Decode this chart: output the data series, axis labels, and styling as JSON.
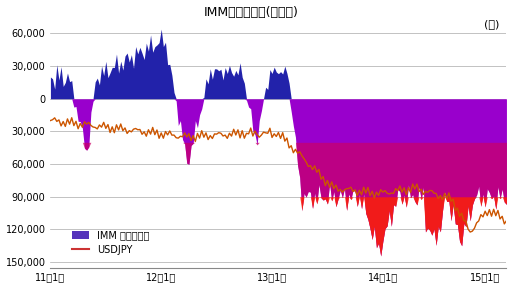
{
  "title": "IMMポジション(ドル円)",
  "title_right": "(円)",
  "x_tick_labels": [
    "11年1月",
    "12年1月",
    "13年1月",
    "14年1月",
    "15年1月"
  ],
  "y_ticks": [
    60000,
    30000,
    0,
    -30000,
    -60000,
    -90000,
    -120000,
    -150000
  ],
  "y_tick_labels": [
    "60,000",
    "30,000",
    "0",
    "30,000",
    "60,000",
    "90,000",
    "120,000",
    "150,000"
  ],
  "ylim_top": 70000,
  "ylim_bottom": -155000,
  "background_color": "#ffffff",
  "grid_color": "#aaaaaa",
  "fill_pos_color": "#2222aa",
  "fill_neg_purple": "#9900cc",
  "fill_neg_magenta": "#cc0066",
  "fill_neg_red": "#ff2200",
  "line_color": "#cc5500",
  "legend_fill_color": "#5533bb",
  "legend_line_color": "#cc3333",
  "legend_items": [
    "IMM ポジション",
    "USDJPY"
  ],
  "n_points": 215,
  "x_tick_positions": [
    0,
    52,
    104,
    156,
    204
  ]
}
